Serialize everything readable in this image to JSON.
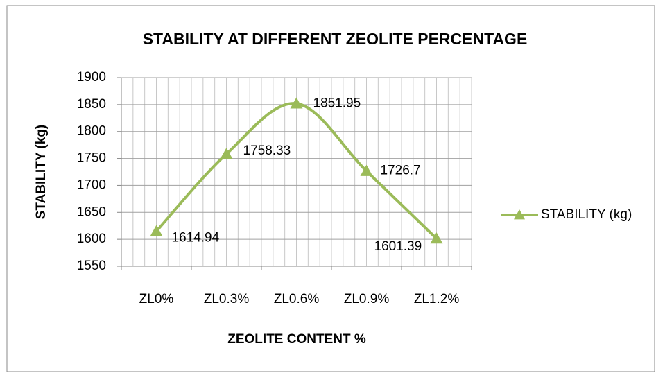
{
  "chart_data": {
    "type": "line",
    "title": "STABILITY AT DIFFERENT ZEOLITE PERCENTAGE",
    "x_label": "ZEOLITE CONTENT %",
    "y_label": "STABILITY (kg)",
    "categories": [
      "ZL0%",
      "ZL0.3%",
      "ZL0.6%",
      "ZL0.9%",
      "ZL1.2%"
    ],
    "series": [
      {
        "name": "STABILITY (kg)",
        "color": "#9bbb59",
        "values": [
          1614.94,
          1758.33,
          1851.95,
          1726.7,
          1601.39
        ]
      }
    ],
    "ylim": [
      1550,
      1900
    ],
    "yticks": [
      1550,
      1600,
      1650,
      1700,
      1750,
      1800,
      1850,
      1900
    ],
    "grid": true,
    "legend": "right"
  }
}
